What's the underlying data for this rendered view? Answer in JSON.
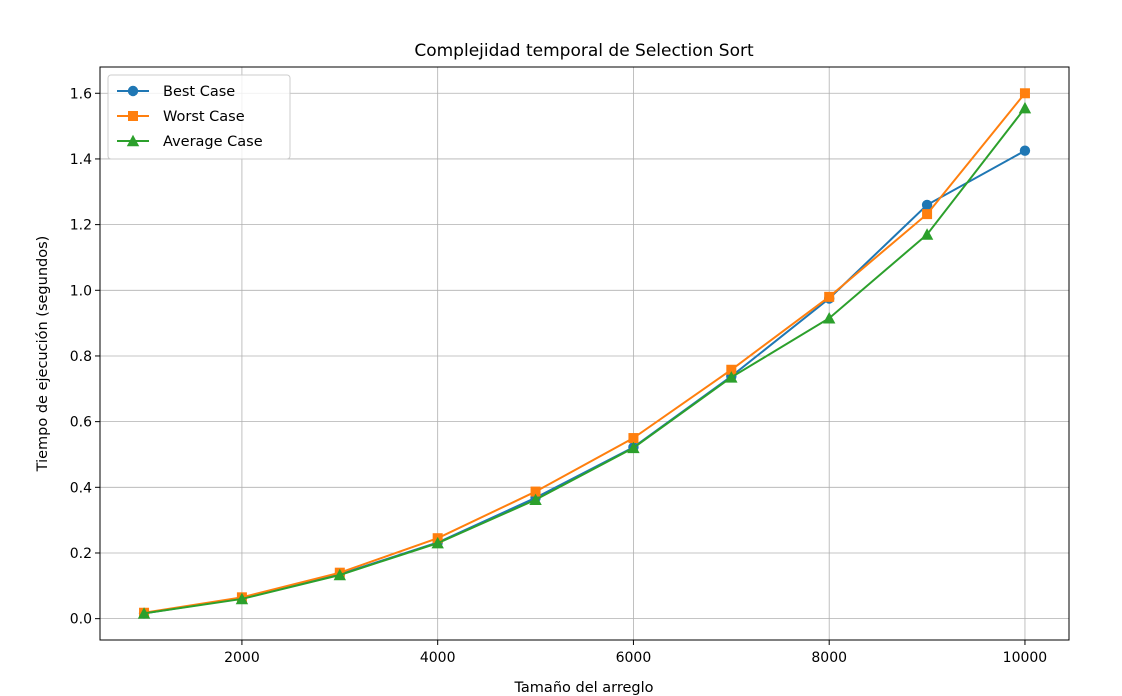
{
  "chart_data": {
    "type": "line",
    "title": "Complejidad temporal de Selection Sort",
    "xlabel": "Tamaño del arreglo",
    "ylabel": "Tiempo de ejecución (segundos)",
    "xlim": [
      550,
      10450
    ],
    "ylim": [
      -0.065,
      1.68
    ],
    "xticks": [
      2000,
      4000,
      6000,
      8000,
      10000
    ],
    "xtick_labels": [
      "2000",
      "4000",
      "6000",
      "8000",
      "10000"
    ],
    "yticks": [
      0.0,
      0.2,
      0.4,
      0.6,
      0.8,
      1.0,
      1.2,
      1.4,
      1.6
    ],
    "ytick_labels": [
      "0.0",
      "0.2",
      "0.4",
      "0.6",
      "0.8",
      "1.0",
      "1.2",
      "1.4",
      "1.6"
    ],
    "grid": true,
    "legend_position": "top-left",
    "x": [
      1000,
      2000,
      3000,
      4000,
      5000,
      6000,
      7000,
      8000,
      9000,
      10000
    ],
    "series": [
      {
        "name": "Best Case",
        "marker": "circle",
        "color": "#1f77b4",
        "values": [
          0.016,
          0.062,
          0.135,
          0.232,
          0.368,
          0.522,
          0.738,
          0.975,
          1.26,
          1.425
        ]
      },
      {
        "name": "Worst Case",
        "marker": "square",
        "color": "#ff7f0e",
        "values": [
          0.018,
          0.065,
          0.14,
          0.245,
          0.387,
          0.55,
          0.758,
          0.98,
          1.232,
          1.6
        ]
      },
      {
        "name": "Average Case",
        "marker": "triangle",
        "color": "#2ca02c",
        "values": [
          0.016,
          0.06,
          0.133,
          0.23,
          0.362,
          0.52,
          0.735,
          0.915,
          1.17,
          1.555
        ]
      }
    ]
  }
}
